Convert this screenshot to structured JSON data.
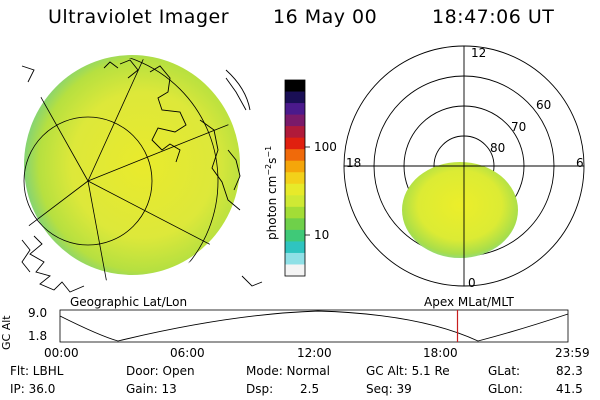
{
  "header": {
    "instrument": "Ultraviolet Imager",
    "date": "16 May 00",
    "time": "18:47:06 UT"
  },
  "colorbar": {
    "unit_label": "photon cm",
    "unit_exp1": "−2",
    "unit_mid": "s",
    "unit_exp2": "−1",
    "ticks": [
      {
        "label": "100",
        "value": 100
      },
      {
        "label": "10",
        "value": 10
      }
    ],
    "colors": [
      "#000000",
      "#1a0f55",
      "#4b1a8c",
      "#7a1a6a",
      "#b01a3a",
      "#e0200f",
      "#f06a0a",
      "#f5a60a",
      "#f3d11a",
      "#e7ea2a",
      "#cfe934",
      "#a3dd36",
      "#6fd04a",
      "#3fc978",
      "#2fc4c0",
      "#8fe0e6",
      "#f4f4f4"
    ]
  },
  "geo_panel": {
    "caption": "Geographic Lat/Lon"
  },
  "polar_panel": {
    "caption": "Apex  MLat/MLT",
    "mlt_labels": {
      "top": "12",
      "left": "18",
      "right": "6",
      "bottom": "0"
    },
    "lat_labels": [
      "60",
      "70",
      "80"
    ]
  },
  "altitude_plot": {
    "ylabel": "GC Alt",
    "yticks": [
      "9.0",
      "1.8"
    ],
    "xticks": [
      "00:00",
      "06:00",
      "12:00",
      "18:00",
      "23:59"
    ],
    "marker_color": "#c81e1e",
    "marker_time_hours": 18.78
  },
  "status": {
    "flt": "Flt: LBHL",
    "ip": "IP: 36.0",
    "door": "Door: Open",
    "gain": "Gain: 13",
    "mode": "Mode: Normal",
    "dsp_label": "Dsp:",
    "dsp_value": "2.5",
    "gc_alt": "GC Alt: 5.1 Re",
    "seq": "Seq: 39",
    "glat_label": "GLat:",
    "glat_value": "82.3",
    "glon_label": "GLon:",
    "glon_value": "41.5"
  }
}
